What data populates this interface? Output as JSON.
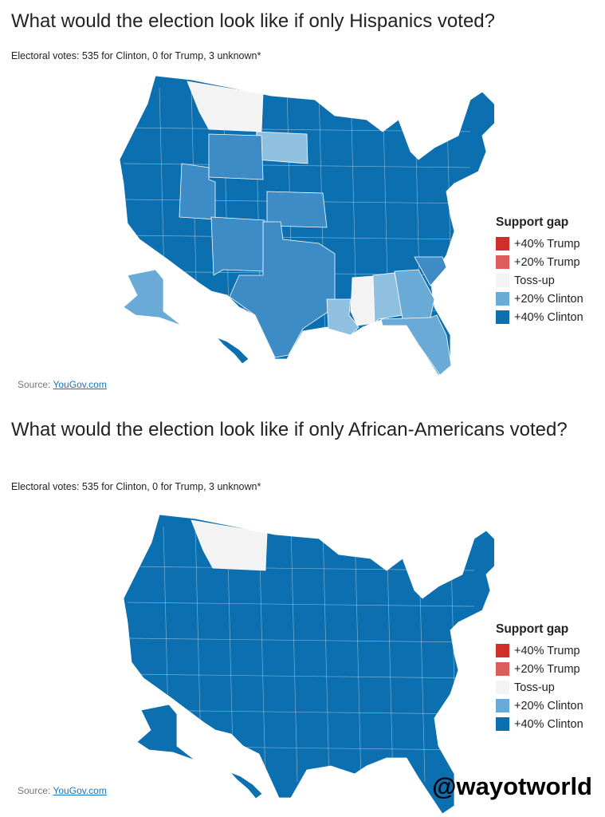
{
  "colors": {
    "trump40": "#d12d2b",
    "trump20": "#dc5e5b",
    "tossup": "#f3f3f3",
    "clinton20": "#6aaad6",
    "clinton40": "#0c6fb0",
    "clinton30": "#3d8cc6",
    "clinton25": "#8fc0e0"
  },
  "legend": {
    "title": "Support gap",
    "items": [
      {
        "label": "+40% Trump",
        "key": "trump40"
      },
      {
        "label": "+20% Trump",
        "key": "trump20"
      },
      {
        "label": "Toss-up",
        "key": "tossup"
      },
      {
        "label": "+20% Clinton",
        "key": "clinton20"
      },
      {
        "label": "+40% Clinton",
        "key": "clinton40"
      }
    ]
  },
  "maps": [
    {
      "title": "What would the election look like if only Hispanics voted?",
      "subtitle": "Electoral votes: 535 for Clinton, 0 for Trump, 3 unknown*",
      "source_label": "Source: ",
      "source_link": "YouGov.com",
      "default": "clinton40",
      "states": [
        {
          "name": "Montana",
          "key": "tossup"
        },
        {
          "name": "South Dakota",
          "key": "clinton25"
        },
        {
          "name": "Wyoming",
          "key": "clinton30"
        },
        {
          "name": "Utah",
          "key": "clinton30"
        },
        {
          "name": "New Mexico",
          "key": "clinton30"
        },
        {
          "name": "Kansas",
          "key": "clinton30"
        },
        {
          "name": "Texas",
          "key": "clinton30"
        },
        {
          "name": "Louisiana",
          "key": "clinton25"
        },
        {
          "name": "Mississippi",
          "key": "tossup"
        },
        {
          "name": "Alabama",
          "key": "clinton25"
        },
        {
          "name": "Georgia",
          "key": "clinton20"
        },
        {
          "name": "Florida",
          "key": "clinton20"
        },
        {
          "name": "South Carolina",
          "key": "clinton30"
        },
        {
          "name": "Alaska",
          "key": "clinton20"
        },
        {
          "name": "Hawaii",
          "key": "clinton40"
        }
      ]
    },
    {
      "title": "What would the election look like if only African-Americans voted?",
      "subtitle": "Electoral votes: 535 for Clinton, 0 for Trump, 3 unknown*",
      "source_label": "Source: ",
      "source_link": "YouGov.com",
      "default": "clinton40",
      "states": [
        {
          "name": "Montana",
          "key": "tossup"
        },
        {
          "name": "Alaska",
          "key": "clinton40"
        },
        {
          "name": "Hawaii",
          "key": "clinton40"
        }
      ]
    }
  ],
  "watermark": "@wayotworld"
}
